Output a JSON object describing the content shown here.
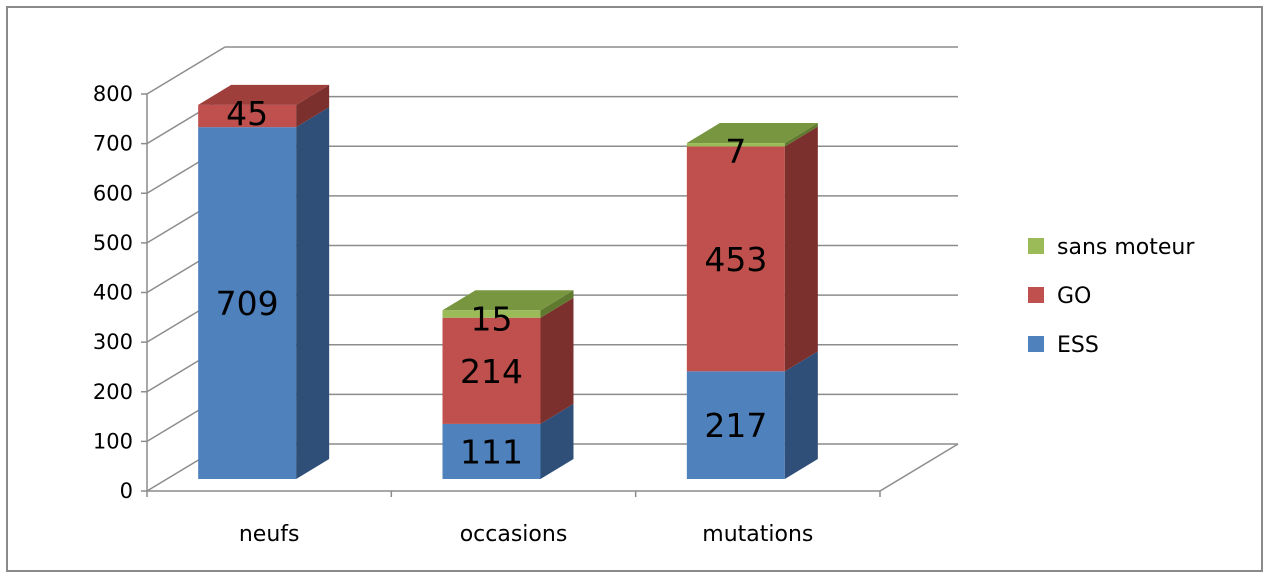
{
  "chart_data": {
    "type": "bar",
    "stacked": true,
    "style": "3d",
    "categories": [
      "neufs",
      "occasions",
      "mutations"
    ],
    "series": [
      {
        "name": "ESS",
        "values": [
          709,
          111,
          217
        ],
        "color": "#4f81bd",
        "side": "#2f4f78",
        "top": "#3f6aa0"
      },
      {
        "name": "GO",
        "values": [
          45,
          214,
          453
        ],
        "color": "#c0504d",
        "side": "#7c302e",
        "top": "#9e3f3c"
      },
      {
        "name": "sans moteur",
        "values": [
          null,
          15,
          7
        ],
        "color": "#9bbb59",
        "side": "#5f7a2e",
        "top": "#789640"
      }
    ],
    "data_labels": [
      [
        "709",
        "111",
        "217"
      ],
      [
        "45",
        "214",
        "453"
      ],
      [
        "",
        "15",
        "7"
      ]
    ],
    "ylim": [
      0,
      800
    ],
    "yticks": [
      "0",
      "100",
      "200",
      "300",
      "400",
      "500",
      "600",
      "700",
      "800"
    ],
    "legend_position": "right",
    "legend_order": [
      "sans moteur",
      "GO",
      "ESS"
    ],
    "grid": true
  }
}
